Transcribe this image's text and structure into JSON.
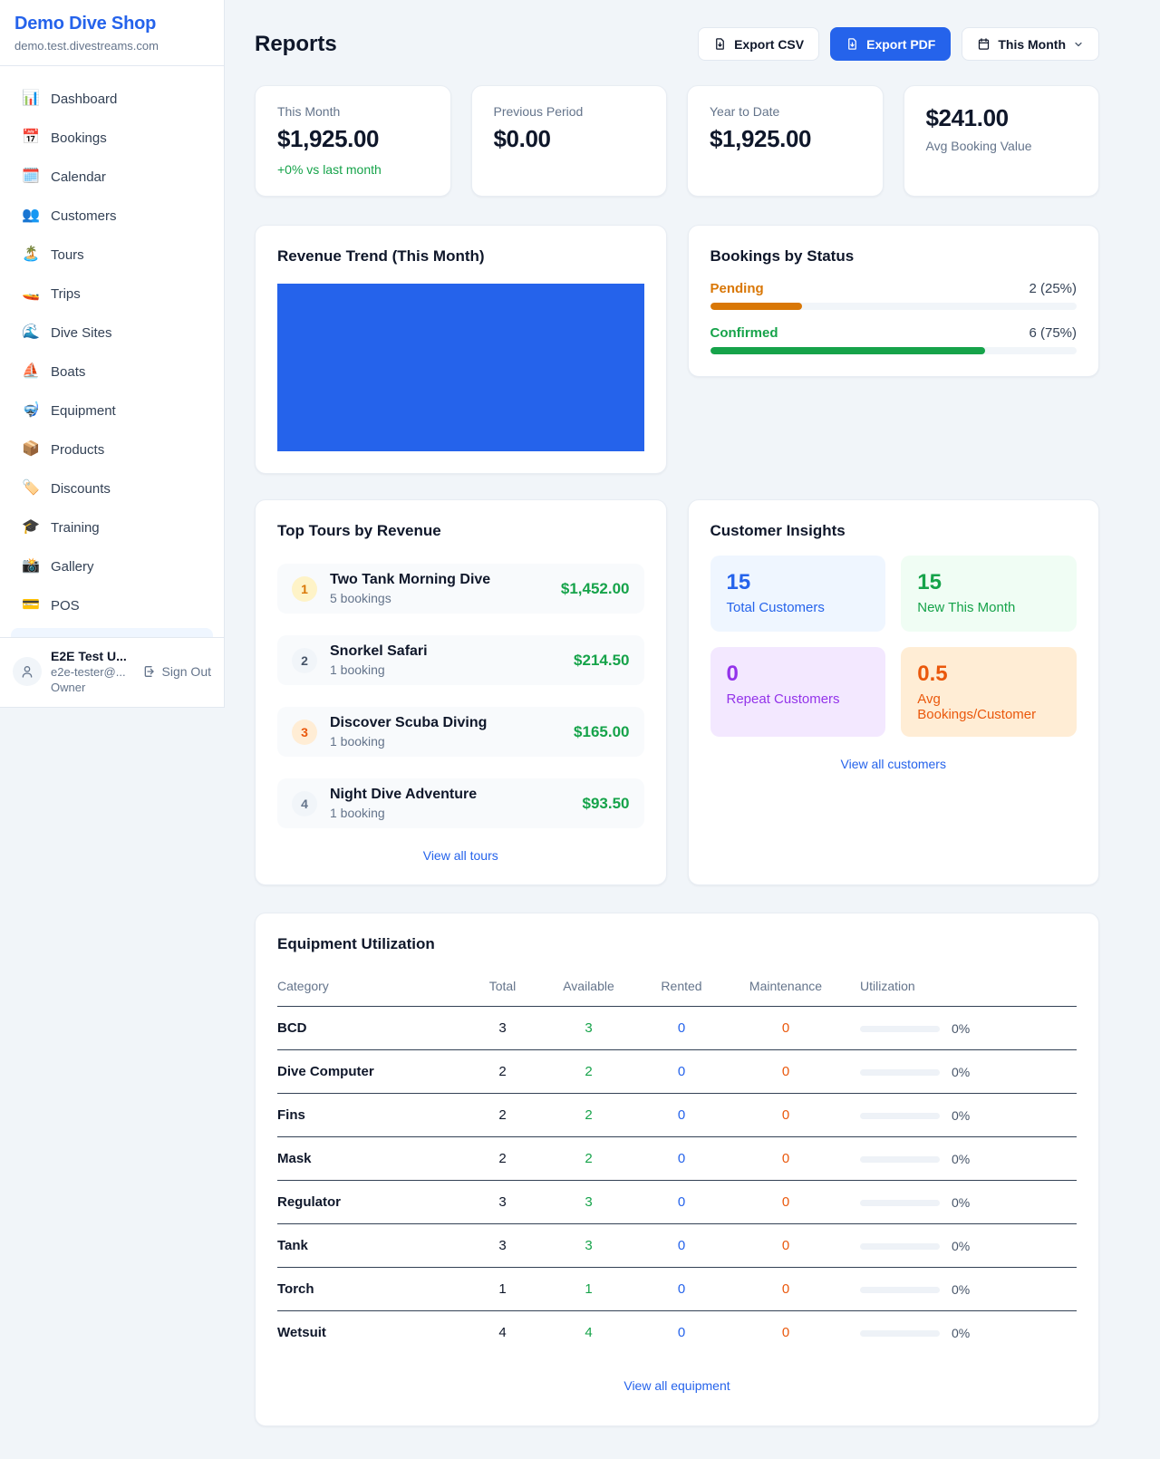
{
  "sidebar": {
    "shop_name": "Demo Dive Shop",
    "shop_domain": "demo.test.divestreams.com",
    "nav_items": [
      {
        "label": "Dashboard",
        "icon": "bar-chart",
        "glyph": "📊"
      },
      {
        "label": "Bookings",
        "icon": "calendar",
        "glyph": "📅"
      },
      {
        "label": "Calendar",
        "icon": "tear-off-calendar",
        "glyph": "🗓️"
      },
      {
        "label": "Customers",
        "icon": "people",
        "glyph": "👥"
      },
      {
        "label": "Tours",
        "icon": "desert-island",
        "glyph": "🏝️"
      },
      {
        "label": "Trips",
        "icon": "speedboat",
        "glyph": "🚤"
      },
      {
        "label": "Dive Sites",
        "icon": "water-wave",
        "glyph": "🌊"
      },
      {
        "label": "Boats",
        "icon": "sailboat",
        "glyph": "⛵"
      },
      {
        "label": "Equipment",
        "icon": "diving-mask",
        "glyph": "🤿"
      },
      {
        "label": "Products",
        "icon": "package",
        "glyph": "📦"
      },
      {
        "label": "Discounts",
        "icon": "label-tag",
        "glyph": "🏷️"
      },
      {
        "label": "Training",
        "icon": "graduation-cap",
        "glyph": "🎓"
      },
      {
        "label": "Gallery",
        "icon": "camera-flash",
        "glyph": "📸"
      },
      {
        "label": "POS",
        "icon": "credit-card",
        "glyph": "💳"
      }
    ],
    "user": {
      "name": "E2E Test U...",
      "email": "e2e-tester@...",
      "role": "Owner",
      "sign_out_label": "Sign Out"
    }
  },
  "header": {
    "title": "Reports",
    "export_csv_label": "Export CSV",
    "export_pdf_label": "Export PDF",
    "period_label": "This Month",
    "primary_color": "#2563eb"
  },
  "stats": [
    {
      "label": "This Month",
      "value": "$1,925.00",
      "delta": "+0% vs last month",
      "delta_color": "#16a34a"
    },
    {
      "label": "Previous Period",
      "value": "$0.00"
    },
    {
      "label": "Year to Date",
      "value": "$1,925.00"
    },
    {
      "label": "Avg Booking Value",
      "value": "$241.00",
      "value_first": true
    }
  ],
  "revenue_trend": {
    "title": "Revenue Trend (This Month)",
    "bar_color": "#2563eb"
  },
  "chart_data": {
    "type": "bar",
    "title": "Revenue Trend (This Month)",
    "categories": [
      "This Month"
    ],
    "values": [
      1925.0
    ],
    "xlabel": "",
    "ylabel": "",
    "notes": "single solid blue bar filling the entire plot area; no axes, gridlines, ticks or labels visible",
    "bar_color": "#2563eb"
  },
  "bookings_by_status": {
    "title": "Bookings by Status",
    "rows": [
      {
        "label": "Pending",
        "count_text": "2 (25%)",
        "percent": 25,
        "color": "#d97706"
      },
      {
        "label": "Confirmed",
        "count_text": "6 (75%)",
        "percent": 75,
        "color": "#16a34a"
      }
    ]
  },
  "top_tours": {
    "title": "Top Tours by Revenue",
    "view_all_label": "View all tours",
    "rows": [
      {
        "rank": "1",
        "name": "Two Tank Morning Dive",
        "bookings": "5 bookings",
        "revenue": "$1,452.00",
        "badge_bg": "#fef3c7",
        "badge_color": "#d97706"
      },
      {
        "rank": "2",
        "name": "Snorkel Safari",
        "bookings": "1 booking",
        "revenue": "$214.50",
        "badge_bg": "#f1f5f9",
        "badge_color": "#475569"
      },
      {
        "rank": "3",
        "name": "Discover Scuba Diving",
        "bookings": "1 booking",
        "revenue": "$165.00",
        "badge_bg": "#ffedd5",
        "badge_color": "#ea580c"
      },
      {
        "rank": "4",
        "name": "Night Dive Adventure",
        "bookings": "1 booking",
        "revenue": "$93.50",
        "badge_bg": "#f1f5f9",
        "badge_color": "#64748b"
      }
    ],
    "revenue_color": "#16a34a"
  },
  "customer_insights": {
    "title": "Customer Insights",
    "view_all_label": "View all customers",
    "tiles": [
      {
        "value": "15",
        "label": "Total Customers",
        "bg": "#eff6ff",
        "color": "#2563eb"
      },
      {
        "value": "15",
        "label": "New This Month",
        "bg": "#f0fdf4",
        "color": "#16a34a"
      },
      {
        "value": "0",
        "label": "Repeat Customers",
        "bg": "#f3e8ff",
        "color": "#9333ea"
      },
      {
        "value": "0.5",
        "label": "Avg Bookings/Customer",
        "bg": "#ffedd5",
        "color": "#ea580c"
      }
    ]
  },
  "equipment": {
    "title": "Equipment Utilization",
    "view_all_label": "View all equipment",
    "columns": [
      "Category",
      "Total",
      "Available",
      "Rented",
      "Maintenance",
      "Utilization"
    ],
    "value_colors": {
      "total": "#0f172a",
      "available": "#16a34a",
      "rented": "#2563eb",
      "maintenance": "#ea580c"
    },
    "rows": [
      {
        "category": "BCD",
        "total": "3",
        "available": "3",
        "rented": "0",
        "maintenance": "0",
        "utilization": "0%"
      },
      {
        "category": "Dive Computer",
        "total": "2",
        "available": "2",
        "rented": "0",
        "maintenance": "0",
        "utilization": "0%"
      },
      {
        "category": "Fins",
        "total": "2",
        "available": "2",
        "rented": "0",
        "maintenance": "0",
        "utilization": "0%"
      },
      {
        "category": "Mask",
        "total": "2",
        "available": "2",
        "rented": "0",
        "maintenance": "0",
        "utilization": "0%"
      },
      {
        "category": "Regulator",
        "total": "3",
        "available": "3",
        "rented": "0",
        "maintenance": "0",
        "utilization": "0%"
      },
      {
        "category": "Tank",
        "total": "3",
        "available": "3",
        "rented": "0",
        "maintenance": "0",
        "utilization": "0%"
      },
      {
        "category": "Torch",
        "total": "1",
        "available": "1",
        "rented": "0",
        "maintenance": "0",
        "utilization": "0%"
      },
      {
        "category": "Wetsuit",
        "total": "4",
        "available": "4",
        "rented": "0",
        "maintenance": "0",
        "utilization": "0%"
      }
    ]
  }
}
